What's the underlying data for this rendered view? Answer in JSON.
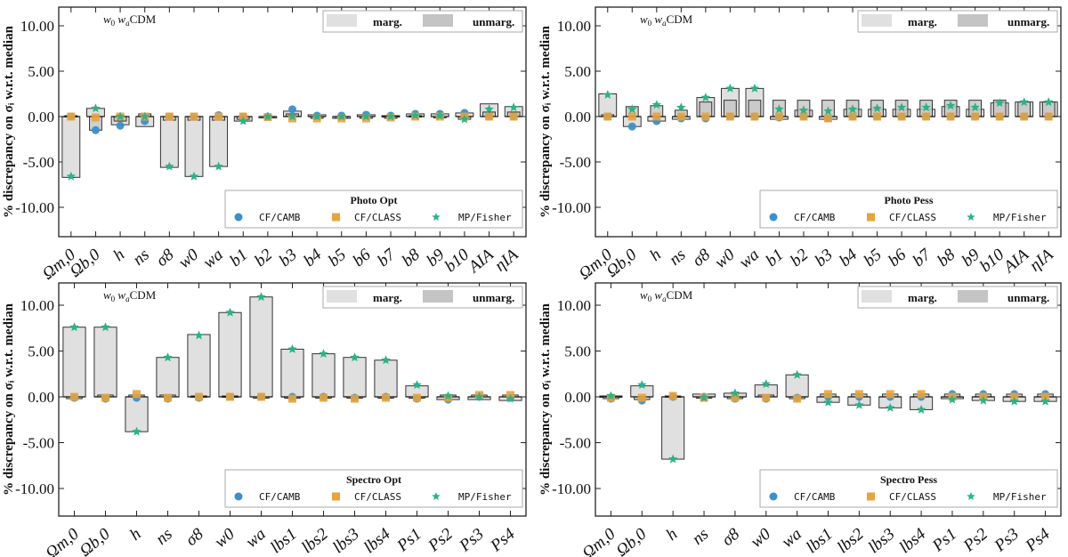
{
  "figure": {
    "ylabel": "% discrepancy on σ_i w.r.t. median",
    "model_label": "w0 wa CDM",
    "legend_bars": [
      "marg.",
      "unmarg."
    ],
    "legend_markers": [
      "CF/CAMB",
      "CF/CLASS",
      "MP/Fisher"
    ],
    "colors": {
      "camb": "#3a8fcc",
      "class": "#e8a33b",
      "fisher": "#2ab38a",
      "marg": "#e0e0e0",
      "unmarg": "#c4c4c4"
    }
  },
  "chart_data": [
    {
      "type": "bar",
      "title": "Photo Opt",
      "ylim": [
        -12.5,
        12.5
      ],
      "yticks": [
        "10.00",
        "5.00",
        "0.00",
        "-5.00",
        "-10.00"
      ],
      "categories": [
        "Ωm,0",
        "Ωb,0",
        "h",
        "ns",
        "σ8",
        "w0",
        "wa",
        "b1",
        "b2",
        "b3",
        "b4",
        "b5",
        "b6",
        "b7",
        "b8",
        "b9",
        "b10",
        "AIA",
        "ηIA"
      ],
      "marg": [
        -6.7,
        0.9,
        -0.9,
        -1.1,
        -5.6,
        -6.6,
        -5.5,
        -0.5,
        -0.05,
        0.6,
        0.2,
        -0.2,
        0.2,
        0.1,
        0.3,
        0.3,
        0.4,
        1.4,
        1.1
      ],
      "unmarg": [
        0.1,
        -1.5,
        -0.5,
        0.3,
        -0.4,
        -0.4,
        -0.4,
        -0.3,
        -0.1,
        0.3,
        -0.2,
        -0.2,
        -0.2,
        -0.2,
        0.1,
        -0.1,
        -0.3,
        0.5,
        0.5
      ],
      "series": [
        {
          "name": "CF/CAMB",
          "values": [
            0.0,
            -1.5,
            -1.0,
            -0.5,
            0.0,
            0.0,
            0.15,
            0.0,
            0.0,
            0.8,
            0.1,
            0.1,
            0.2,
            0.1,
            0.3,
            0.3,
            0.4,
            0.0,
            0.0
          ]
        },
        {
          "name": "CF/CLASS",
          "values": [
            0.0,
            -0.1,
            0.0,
            0.0,
            0.0,
            0.0,
            0.0,
            0.0,
            -0.05,
            -0.2,
            -0.2,
            -0.2,
            -0.2,
            -0.1,
            0.0,
            0.0,
            0.0,
            0.0,
            0.0
          ]
        },
        {
          "name": "MP/Fisher",
          "values": [
            -6.6,
            0.9,
            0.0,
            0.0,
            -5.5,
            -6.6,
            -5.5,
            -0.5,
            0.0,
            0.0,
            0.0,
            0.0,
            0.0,
            0.0,
            0.1,
            0.1,
            -0.3,
            0.8,
            1.0
          ]
        }
      ]
    },
    {
      "type": "bar",
      "title": "Photo Pess",
      "ylim": [
        -12.5,
        12.5
      ],
      "yticks": [
        "10.00",
        "5.00",
        "0.00",
        "-5.00",
        "-10.00"
      ],
      "categories": [
        "Ωm,0",
        "Ωb,0",
        "h",
        "ns",
        "σ8",
        "w0",
        "wa",
        "b1",
        "b2",
        "b3",
        "b4",
        "b5",
        "b6",
        "b7",
        "b8",
        "b9",
        "b10",
        "AIA",
        "ηIA"
      ],
      "marg": [
        2.5,
        -1.1,
        -0.5,
        -0.3,
        2.1,
        3.1,
        3.1,
        -0.3,
        0.7,
        -0.3,
        0.8,
        0.8,
        0.8,
        0.8,
        1.1,
        0.8,
        1.5,
        1.6,
        1.6
      ],
      "unmarg": [
        0.2,
        1.1,
        1.2,
        0.7,
        1.6,
        1.8,
        1.8,
        1.8,
        1.8,
        1.8,
        1.8,
        1.8,
        1.8,
        1.8,
        1.8,
        1.8,
        1.8,
        1.6,
        1.6
      ],
      "series": [
        {
          "name": "CF/CAMB",
          "values": [
            0.0,
            -1.1,
            -0.5,
            -0.2,
            -0.2,
            0.0,
            0.0,
            -0.1,
            0.0,
            -0.2,
            0.0,
            0.0,
            0.0,
            0.0,
            0.0,
            0.0,
            0.0,
            0.0,
            0.0
          ]
        },
        {
          "name": "CF/CLASS",
          "values": [
            0.0,
            0.0,
            0.0,
            0.0,
            0.0,
            0.0,
            0.0,
            0.0,
            0.0,
            -0.2,
            0.0,
            0.0,
            0.0,
            0.0,
            0.0,
            0.0,
            0.0,
            0.0,
            0.0
          ]
        },
        {
          "name": "MP/Fisher",
          "values": [
            2.4,
            0.8,
            1.3,
            1.0,
            2.1,
            3.1,
            3.1,
            0.8,
            0.7,
            0.6,
            0.8,
            0.9,
            1.0,
            1.0,
            1.2,
            1.0,
            1.5,
            1.6,
            1.6
          ]
        }
      ]
    },
    {
      "type": "bar",
      "title": "Spectro Opt",
      "ylim": [
        -12.5,
        12.5
      ],
      "yticks": [
        "10.00",
        "5.00",
        "0.00",
        "-5.00",
        "-10.00"
      ],
      "categories": [
        "Ωm,0",
        "Ωb,0",
        "h",
        "ns",
        "σ8",
        "w0",
        "wa",
        "lbs1",
        "lbs2",
        "lbs3",
        "lbs4",
        "Ps1",
        "Ps2",
        "Ps3",
        "Ps4"
      ],
      "marg": [
        7.6,
        7.6,
        -3.8,
        4.3,
        6.8,
        9.2,
        10.9,
        5.2,
        4.7,
        4.3,
        4.0,
        1.2,
        -0.3,
        -0.3,
        -0.4
      ],
      "unmarg": [
        -0.2,
        0.2,
        0.2,
        0.2,
        0.1,
        0.1,
        0.0,
        -0.1,
        -0.1,
        -0.1,
        -0.1,
        -0.1,
        0.2,
        0.2,
        0.2
      ],
      "series": [
        {
          "name": "CF/CAMB",
          "values": [
            -0.1,
            -0.2,
            -0.1,
            -0.2,
            -0.1,
            0.0,
            0.0,
            0.0,
            0.0,
            -0.1,
            0.0,
            -0.2,
            -0.3,
            0.0,
            -0.1
          ]
        },
        {
          "name": "CF/CLASS",
          "values": [
            0.0,
            -0.1,
            0.3,
            -0.1,
            0.0,
            0.0,
            0.0,
            -0.2,
            -0.1,
            -0.2,
            -0.1,
            -0.1,
            -0.1,
            0.2,
            0.2
          ]
        },
        {
          "name": "MP/Fisher",
          "values": [
            7.6,
            7.6,
            -3.8,
            4.3,
            6.7,
            9.2,
            10.9,
            5.2,
            4.7,
            4.3,
            4.0,
            1.3,
            0.1,
            0.0,
            -0.2
          ]
        }
      ]
    },
    {
      "type": "bar",
      "title": "Spectro Pess",
      "ylim": [
        -12.5,
        12.5
      ],
      "yticks": [
        "10.00",
        "5.00",
        "0.00",
        "-5.00",
        "-10.00"
      ],
      "categories": [
        "Ωm,0",
        "Ωb,0",
        "h",
        "ns",
        "σ8",
        "w0",
        "wa",
        "lbs1",
        "lbs2",
        "lbs3",
        "lbs4",
        "Ps1",
        "Ps2",
        "Ps3",
        "Ps4"
      ],
      "marg": [
        0.1,
        1.2,
        -6.8,
        0.3,
        0.4,
        1.3,
        2.4,
        -0.6,
        -0.9,
        -1.2,
        -1.4,
        -0.2,
        -0.4,
        -0.5,
        -0.5
      ],
      "unmarg": [
        -0.2,
        -0.3,
        0.1,
        -0.1,
        -0.2,
        0.2,
        -0.2,
        0.3,
        0.3,
        0.3,
        0.3,
        0.3,
        0.3,
        0.3,
        0.3
      ],
      "series": [
        {
          "name": "CF/CAMB",
          "values": [
            -0.2,
            -0.4,
            0.0,
            0.0,
            -0.2,
            -0.2,
            -0.1,
            0.0,
            0.0,
            0.0,
            0.0,
            0.3,
            0.3,
            0.3,
            0.3
          ]
        },
        {
          "name": "CF/CLASS",
          "values": [
            -0.1,
            -0.1,
            0.1,
            -0.1,
            -0.1,
            -0.1,
            -0.2,
            0.3,
            0.3,
            0.3,
            0.3,
            0.0,
            0.0,
            0.0,
            0.0
          ]
        },
        {
          "name": "MP/Fisher",
          "values": [
            0.1,
            1.3,
            -6.8,
            -0.1,
            0.4,
            1.4,
            2.4,
            -0.6,
            -0.9,
            -1.2,
            -1.4,
            -0.3,
            -0.4,
            -0.5,
            -0.5
          ]
        }
      ]
    }
  ]
}
